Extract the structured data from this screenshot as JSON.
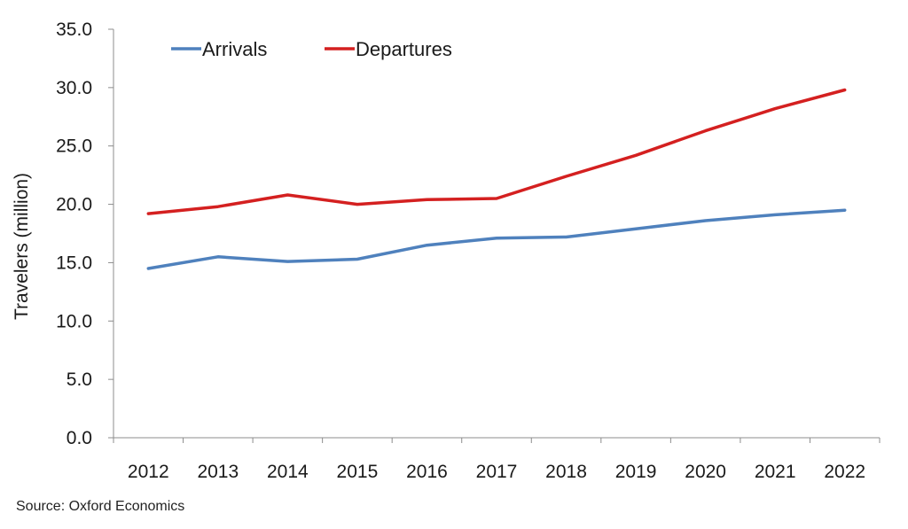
{
  "chart_data": {
    "type": "line",
    "ylabel": "Travelers (million)",
    "xlabel": "",
    "ylim": [
      0,
      35
    ],
    "y_ticks": [
      "0.0",
      "5.0",
      "10.0",
      "15.0",
      "20.0",
      "25.0",
      "30.0",
      "35.0"
    ],
    "categories": [
      "2012",
      "2013",
      "2014",
      "2015",
      "2016",
      "2017",
      "2018",
      "2019",
      "2020",
      "2021",
      "2022"
    ],
    "series": [
      {
        "name": "Arrivals",
        "color": "#4f81bd",
        "values": [
          14.5,
          15.5,
          15.1,
          15.3,
          16.5,
          17.1,
          17.2,
          17.9,
          18.6,
          19.1,
          19.5
        ]
      },
      {
        "name": "Departures",
        "color": "#d42020",
        "values": [
          19.2,
          19.8,
          20.8,
          20.0,
          20.4,
          20.5,
          22.4,
          24.2,
          26.3,
          28.2,
          29.8
        ]
      }
    ],
    "legend": "top-left",
    "grid": false
  },
  "source": "Source:  Oxford Economics"
}
